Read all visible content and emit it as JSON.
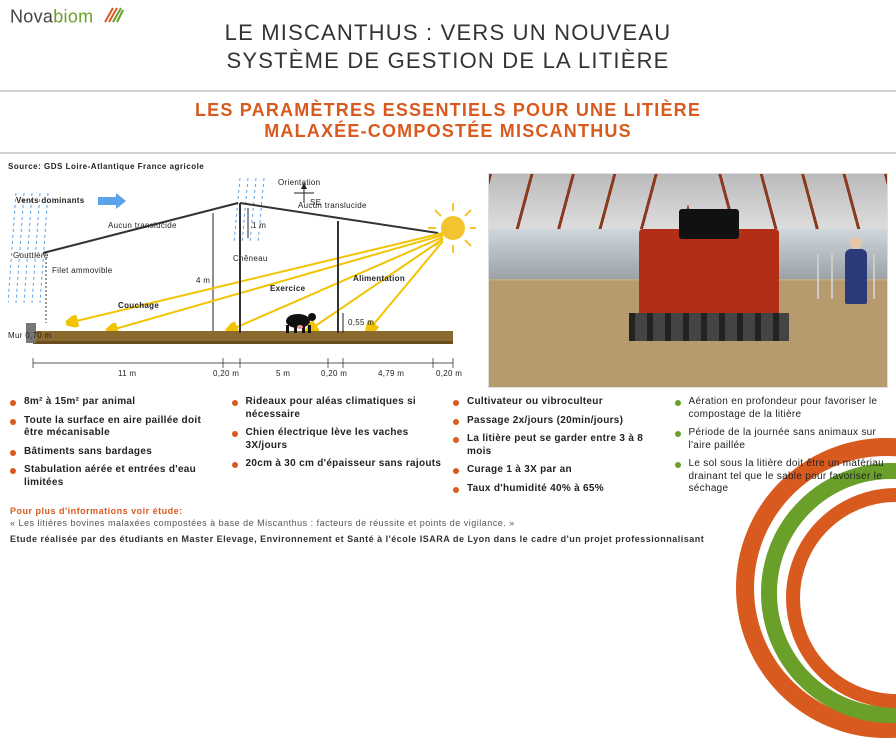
{
  "brand": {
    "name_part1": "Nova",
    "name_part2": "biom"
  },
  "title_line1": "LE MISCANTHUS : VERS UN NOUVEAU",
  "title_line2": "SYSTÈME DE GESTION DE LA LITIÈRE",
  "subtitle_line1": "LES PARAMÈTRES ESSENTIELS POUR UNE LITIÈRE",
  "subtitle_line2": "MALAXÉE-COMPOSTÉE MISCANTHUS",
  "diagram": {
    "source": "Source: GDS Loire-Atlantique France agricole",
    "labels": {
      "vents": "Vents dominants",
      "orientation": "Orientation",
      "se": "SE",
      "aucun_translucide": "Aucun translucide",
      "gouttiere": "Gouttière",
      "filet": "Filet ammovible",
      "cheneau": "Chêneau",
      "couchage": "Couchage",
      "exercice": "Exercice",
      "alimentation": "Alimentation",
      "mur": "Mur 0,70 m"
    },
    "heights": {
      "h4m": "4 m",
      "h1m": "1 m",
      "h055m": "0,55 m"
    },
    "widths": {
      "w11m": "11 m",
      "w020a": "0,20 m",
      "w5m": "5 m",
      "w020b": "0,20 m",
      "w479": "4,79 m",
      "w020c": "0,20 m"
    },
    "colors": {
      "sky_rain": "#5aa3e8",
      "brown": "#8a6a2f",
      "roof": "#333333",
      "sun": "#f4c430",
      "ray": "#f2c300"
    }
  },
  "bullets": {
    "col1": [
      "8m² à 15m² par animal",
      "Toute la surface en aire paillée doit être mécanisable",
      "Bâtiments sans bardages",
      "Stabulation aérée et entrées d'eau limitées"
    ],
    "col2": [
      "Rideaux pour aléas climatiques si nécessaire",
      "Chien électrique lève les vaches 3X/jours",
      "20cm à 30 cm d'épaisseur sans rajouts"
    ],
    "col3": [
      "Cultivateur ou vibroculteur",
      "Passage 2x/jours (20min/jours)",
      "La litière peut se garder entre 3 à 8 mois",
      "Curage 1 à 3X par an",
      "Taux d'humidité 40% à 65%"
    ],
    "col4": [
      "Aération en profondeur pour favoriser le compostage de la litière",
      "Période de la journée sans animaux sur l'aire paillée",
      "Le sol sous la litière doit être un matériau drainant tel que le sable pour favoriser le séchage"
    ]
  },
  "footer": {
    "more_label": "Pour plus d'informations voir étude:",
    "study": "« Les litières bovines malaxées compostées à base de Miscanthus : facteurs de réussite et points de vigilance. »",
    "attribution": "Etude réalisée par des étudiants en Master Elevage, Environnement et Santé à l'école ISARA de Lyon dans le cadre d'un projet professionnalisant"
  },
  "palette": {
    "orange": "#d85a1f",
    "green": "#6aa02a",
    "text": "#333333",
    "rule": "#d0d0d0"
  }
}
